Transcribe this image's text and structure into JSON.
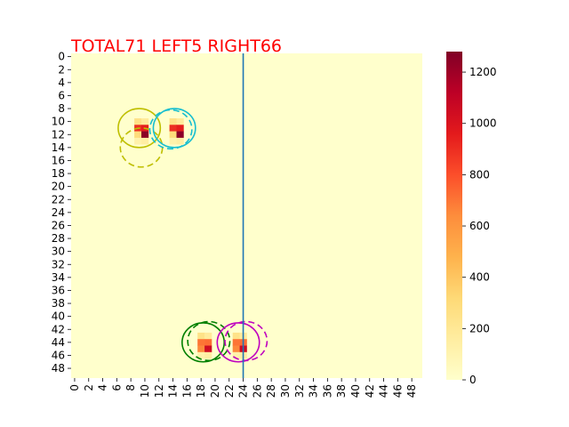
{
  "title": "TOTAL71  LEFT5 RIGHT66",
  "title_color": "#ff0000",
  "chart_data": {
    "type": "heatmap",
    "title": "TOTAL71  LEFT5 RIGHT66",
    "xlabel": "",
    "ylabel": "",
    "grid_size": [
      50,
      50
    ],
    "x_tick_labels": [
      "0",
      "2",
      "4",
      "6",
      "8",
      "10",
      "12",
      "14",
      "16",
      "18",
      "20",
      "22",
      "24",
      "26",
      "28",
      "30",
      "32",
      "34",
      "36",
      "38",
      "40",
      "42",
      "44",
      "46",
      "48"
    ],
    "y_tick_labels": [
      "0",
      "2",
      "4",
      "6",
      "8",
      "10",
      "12",
      "14",
      "16",
      "18",
      "20",
      "22",
      "24",
      "26",
      "28",
      "30",
      "32",
      "34",
      "36",
      "38",
      "40",
      "42",
      "44",
      "46",
      "48"
    ],
    "colormap": "YlOrRd",
    "color_range": [
      0,
      1280
    ],
    "colorbar_ticks": [
      "0",
      "200",
      "400",
      "600",
      "800",
      "1000",
      "1200"
    ],
    "colorbar_tick_values": [
      0,
      200,
      400,
      600,
      800,
      1000,
      1200
    ],
    "background_value": 0,
    "cells": [
      {
        "col": 9,
        "row": 10,
        "value": 250
      },
      {
        "col": 10,
        "row": 10,
        "value": 180
      },
      {
        "col": 9,
        "row": 11,
        "value": 900
      },
      {
        "col": 10,
        "row": 11,
        "value": 950
      },
      {
        "col": 9,
        "row": 12,
        "value": 300
      },
      {
        "col": 10,
        "row": 12,
        "value": 1250
      },
      {
        "col": 9,
        "row": 13,
        "value": 120
      },
      {
        "col": 10,
        "row": 13,
        "value": 150
      },
      {
        "col": 14,
        "row": 10,
        "value": 250
      },
      {
        "col": 15,
        "row": 10,
        "value": 180
      },
      {
        "col": 14,
        "row": 11,
        "value": 900
      },
      {
        "col": 15,
        "row": 11,
        "value": 950
      },
      {
        "col": 14,
        "row": 12,
        "value": 300
      },
      {
        "col": 15,
        "row": 12,
        "value": 1250
      },
      {
        "col": 14,
        "row": 13,
        "value": 120
      },
      {
        "col": 15,
        "row": 13,
        "value": 150
      },
      {
        "col": 18,
        "row": 43,
        "value": 250
      },
      {
        "col": 19,
        "row": 43,
        "value": 180
      },
      {
        "col": 18,
        "row": 44,
        "value": 700
      },
      {
        "col": 19,
        "row": 44,
        "value": 720
      },
      {
        "col": 18,
        "row": 45,
        "value": 650
      },
      {
        "col": 19,
        "row": 45,
        "value": 1050
      },
      {
        "col": 18,
        "row": 46,
        "value": 120
      },
      {
        "col": 19,
        "row": 46,
        "value": 150
      },
      {
        "col": 23,
        "row": 43,
        "value": 250
      },
      {
        "col": 24,
        "row": 43,
        "value": 180
      },
      {
        "col": 23,
        "row": 44,
        "value": 700
      },
      {
        "col": 24,
        "row": 44,
        "value": 720
      },
      {
        "col": 23,
        "row": 45,
        "value": 650
      },
      {
        "col": 24,
        "row": 45,
        "value": 1050
      },
      {
        "col": 23,
        "row": 46,
        "value": 120
      },
      {
        "col": 24,
        "row": 46,
        "value": 150
      }
    ],
    "vertical_line": {
      "x": 24.5,
      "color": "#1f77b4"
    },
    "circles": [
      {
        "cx": 9.7,
        "cy": 11.5,
        "r": 3.0,
        "color": "#bfbf00",
        "style": "solid"
      },
      {
        "cx": 10.0,
        "cy": 14.5,
        "r": 3.0,
        "color": "#bfbf00",
        "style": "dashed"
      },
      {
        "cx": 14.7,
        "cy": 11.5,
        "r": 3.0,
        "color": "#17becf",
        "style": "solid"
      },
      {
        "cx": 14.2,
        "cy": 11.7,
        "r": 3.0,
        "color": "#17becf",
        "style": "dashed"
      },
      {
        "cx": 18.8,
        "cy": 44.5,
        "r": 3.0,
        "color": "#007f00",
        "style": "solid"
      },
      {
        "cx": 19.6,
        "cy": 44.3,
        "r": 3.0,
        "color": "#007f00",
        "style": "dashed"
      },
      {
        "cx": 23.8,
        "cy": 44.5,
        "r": 3.0,
        "color": "#bf00bf",
        "style": "solid"
      },
      {
        "cx": 24.9,
        "cy": 44.3,
        "r": 3.0,
        "color": "#bf00bf",
        "style": "dashed"
      }
    ]
  }
}
